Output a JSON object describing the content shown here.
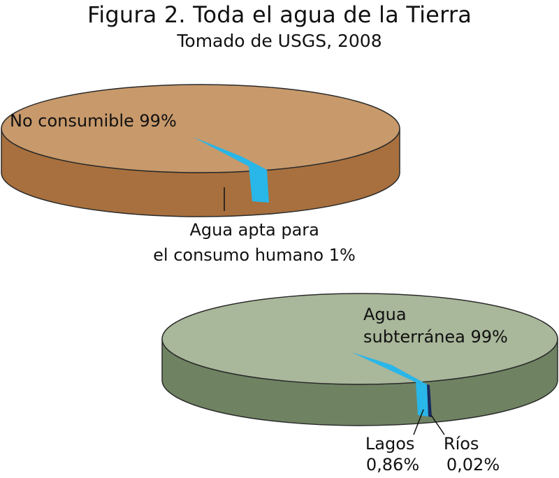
{
  "title": "Figura 2. Toda el agua de la Tierra",
  "subtitle": "Tomado de USGS, 2008",
  "colors": {
    "upper_top": "#c8996b",
    "upper_side": "#a8703e",
    "lower_top": "#a9b79a",
    "lower_side": "#6f8363",
    "accent": "#29b6e8",
    "rivers": "#1b2a5e",
    "outline": "#2a2a2a"
  },
  "chart_data": [
    {
      "type": "pie",
      "title": "",
      "slices": [
        {
          "label": "No consumible",
          "value": 99,
          "display": "No consumible 99%"
        },
        {
          "label": "Agua apta para el consumo humano",
          "value": 1,
          "display_lines": [
            "Agua apta para",
            "el consumo humano 1%"
          ]
        }
      ]
    },
    {
      "type": "pie",
      "title": "",
      "slices": [
        {
          "label": "Agua subterránea",
          "value": 99,
          "display_lines": [
            "Agua",
            "subterránea 99%"
          ]
        },
        {
          "label": "Lagos",
          "value": 0.86,
          "display_lines": [
            "Lagos",
            "0,86%"
          ]
        },
        {
          "label": "Ríos",
          "value": 0.02,
          "display_lines": [
            "Ríos",
            "0,02%"
          ]
        }
      ]
    }
  ]
}
